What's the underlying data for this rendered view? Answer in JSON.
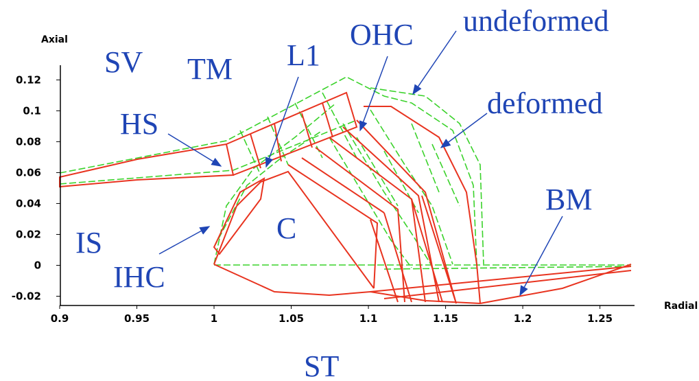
{
  "axes": {
    "x_label": "Radial",
    "y_label": "Axial",
    "xlim": [
      0.9,
      1.2724
    ],
    "ylim": [
      -0.026,
      0.1295
    ],
    "xticks": [
      0.9,
      0.95,
      1,
      1.05,
      1.1,
      1.15,
      1.2,
      1.25
    ],
    "yticks": [
      0.12,
      0.1,
      0.08,
      0.06,
      0.04,
      0.02,
      0,
      -0.02
    ]
  },
  "labels": {
    "sv": "SV",
    "tm": "TM",
    "l1": "L1",
    "ohc": "OHC",
    "undeformed": "undeformed",
    "deformed": "deformed",
    "hs": "HS",
    "is": "IS",
    "c": "C",
    "ihc": "IHC",
    "bm": "BM",
    "st": "ST"
  }
}
